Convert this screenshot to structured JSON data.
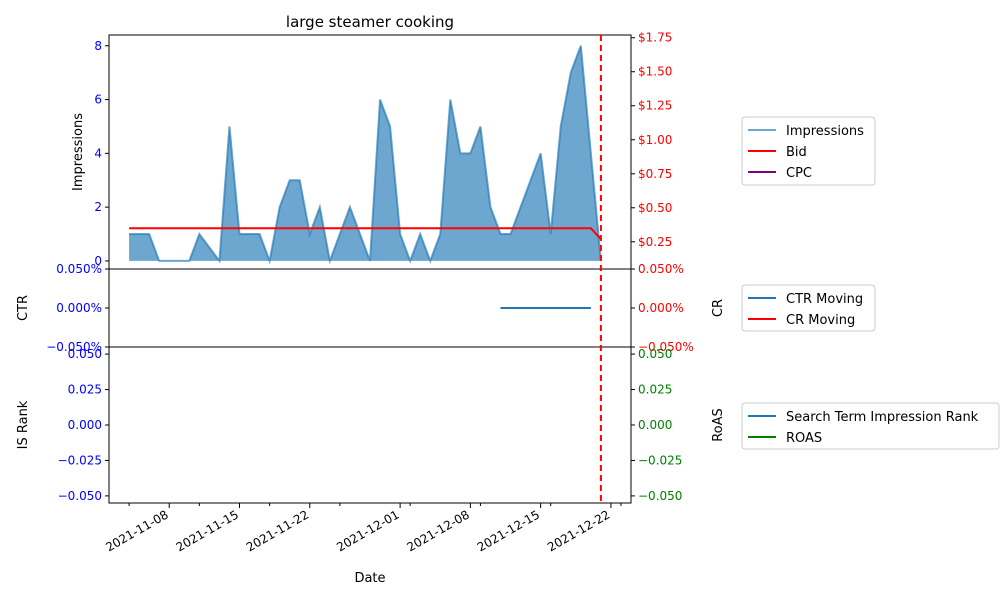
{
  "chart_data": {
    "type": "line",
    "title": "large steamer cooking",
    "xlabel": "Date",
    "x_tick_labels": [
      "2021-11-08",
      "2021-11-15",
      "2021-11-22",
      "2021-12-01",
      "2021-12-08",
      "2021-12-15",
      "2021-12-22"
    ],
    "x_range": [
      "2021-11-02",
      "2021-12-24"
    ],
    "marker_date": "2021-12-21",
    "panels": [
      {
        "id": "top",
        "left_label": "Impressions",
        "left_ylim": [
          -0.3,
          8.4
        ],
        "left_ticks": [
          0,
          2,
          4,
          6,
          8
        ],
        "left_tick_labels": [
          "0",
          "2",
          "4",
          "6",
          "8"
        ],
        "right_ylim": [
          0.05,
          1.77
        ],
        "right_ticks": [
          0.25,
          0.5,
          0.75,
          1.0,
          1.25,
          1.5,
          1.75
        ],
        "right_tick_labels": [
          "$0.25",
          "$0.50",
          "$0.75",
          "$1.00",
          "$1.25",
          "$1.50",
          "$1.75"
        ],
        "series": [
          {
            "name": "Impressions",
            "axis": "left",
            "color": "#1f77b4",
            "dates": [
              "2021-11-04",
              "2021-11-05",
              "2021-11-06",
              "2021-11-07",
              "2021-11-08",
              "2021-11-09",
              "2021-11-10",
              "2021-11-11",
              "2021-11-12",
              "2021-11-13",
              "2021-11-14",
              "2021-11-15",
              "2021-11-16",
              "2021-11-17",
              "2021-11-18",
              "2021-11-19",
              "2021-11-20",
              "2021-11-21",
              "2021-11-22",
              "2021-11-23",
              "2021-11-24",
              "2021-11-25",
              "2021-11-26",
              "2021-11-27",
              "2021-11-28",
              "2021-11-29",
              "2021-11-30",
              "2021-12-01",
              "2021-12-02",
              "2021-12-03",
              "2021-12-04",
              "2021-12-05",
              "2021-12-06",
              "2021-12-07",
              "2021-12-08",
              "2021-12-09",
              "2021-12-10",
              "2021-12-11",
              "2021-12-12",
              "2021-12-13",
              "2021-12-14",
              "2021-12-15",
              "2021-12-16",
              "2021-12-17",
              "2021-12-18",
              "2021-12-19",
              "2021-12-20",
              "2021-12-21"
            ],
            "values": [
              1,
              1,
              1,
              0,
              0,
              0,
              0,
              1,
              0.5,
              0,
              5,
              1,
              1,
              1,
              0,
              2,
              3,
              3,
              1,
              2,
              0,
              1,
              2,
              1,
              0,
              6,
              5,
              1,
              0,
              1,
              0,
              1,
              6,
              4,
              4,
              5,
              2,
              1,
              1,
              2,
              3,
              4,
              1,
              5,
              7,
              8,
              4,
              0
            ]
          },
          {
            "name": "Bid",
            "axis": "right",
            "color": "#ff0000",
            "dates": [
              "2021-11-04",
              "2021-12-20",
              "2021-12-21"
            ],
            "values": [
              0.35,
              0.35,
              0.27
            ]
          },
          {
            "name": "CPC",
            "axis": "right",
            "color": "#800080",
            "dates": [],
            "values": []
          }
        ]
      },
      {
        "id": "middle",
        "left_label": "CTR",
        "right_label": "CR",
        "left_ylim": [
          -0.05,
          0.05
        ],
        "left_ticks": [
          -0.05,
          0,
          0.05
        ],
        "left_tick_labels": [
          "−0.050%",
          "0.000%",
          "0.050%"
        ],
        "right_ylim": [
          -0.05,
          0.05
        ],
        "right_ticks": [
          -0.05,
          0,
          0.05
        ],
        "right_tick_labels": [
          "−0.050%",
          "0.000%",
          "0.050%"
        ],
        "series": [
          {
            "name": "CTR Moving",
            "axis": "left",
            "color": "#1f77b4",
            "dates": [
              "2021-12-11",
              "2021-12-20"
            ],
            "values": [
              0,
              0
            ]
          },
          {
            "name": "CR Moving",
            "axis": "right",
            "color": "#ff0000",
            "dates": [],
            "values": []
          }
        ]
      },
      {
        "id": "bottom",
        "left_label": "IS Rank",
        "right_label": "RoAS",
        "left_ylim": [
          -0.055,
          0.055
        ],
        "left_ticks": [
          -0.05,
          -0.025,
          0,
          0.025,
          0.05
        ],
        "left_tick_labels": [
          "−0.050",
          "−0.025",
          "0.000",
          "0.025",
          "0.050"
        ],
        "right_ylim": [
          -0.055,
          0.055
        ],
        "right_ticks": [
          -0.05,
          -0.025,
          0,
          0.025,
          0.05
        ],
        "right_tick_labels": [
          "−0.050",
          "−0.025",
          "0.000",
          "0.025",
          "0.050"
        ],
        "series": [
          {
            "name": "Search Term Impression Rank",
            "axis": "left",
            "color": "#1f77b4",
            "dates": [],
            "values": []
          },
          {
            "name": "ROAS",
            "axis": "right",
            "color": "#008000",
            "dates": [],
            "values": []
          }
        ]
      }
    ],
    "legends": [
      [
        "Impressions",
        "Bid",
        "CPC"
      ],
      [
        "CTR Moving",
        "CR Moving"
      ],
      [
        "Search Term Impression Rank",
        "ROAS"
      ]
    ],
    "left_tick_color": "#0000ff",
    "right_tick_colors": [
      "#ff0000",
      "#ff0000",
      "#008000"
    ]
  }
}
